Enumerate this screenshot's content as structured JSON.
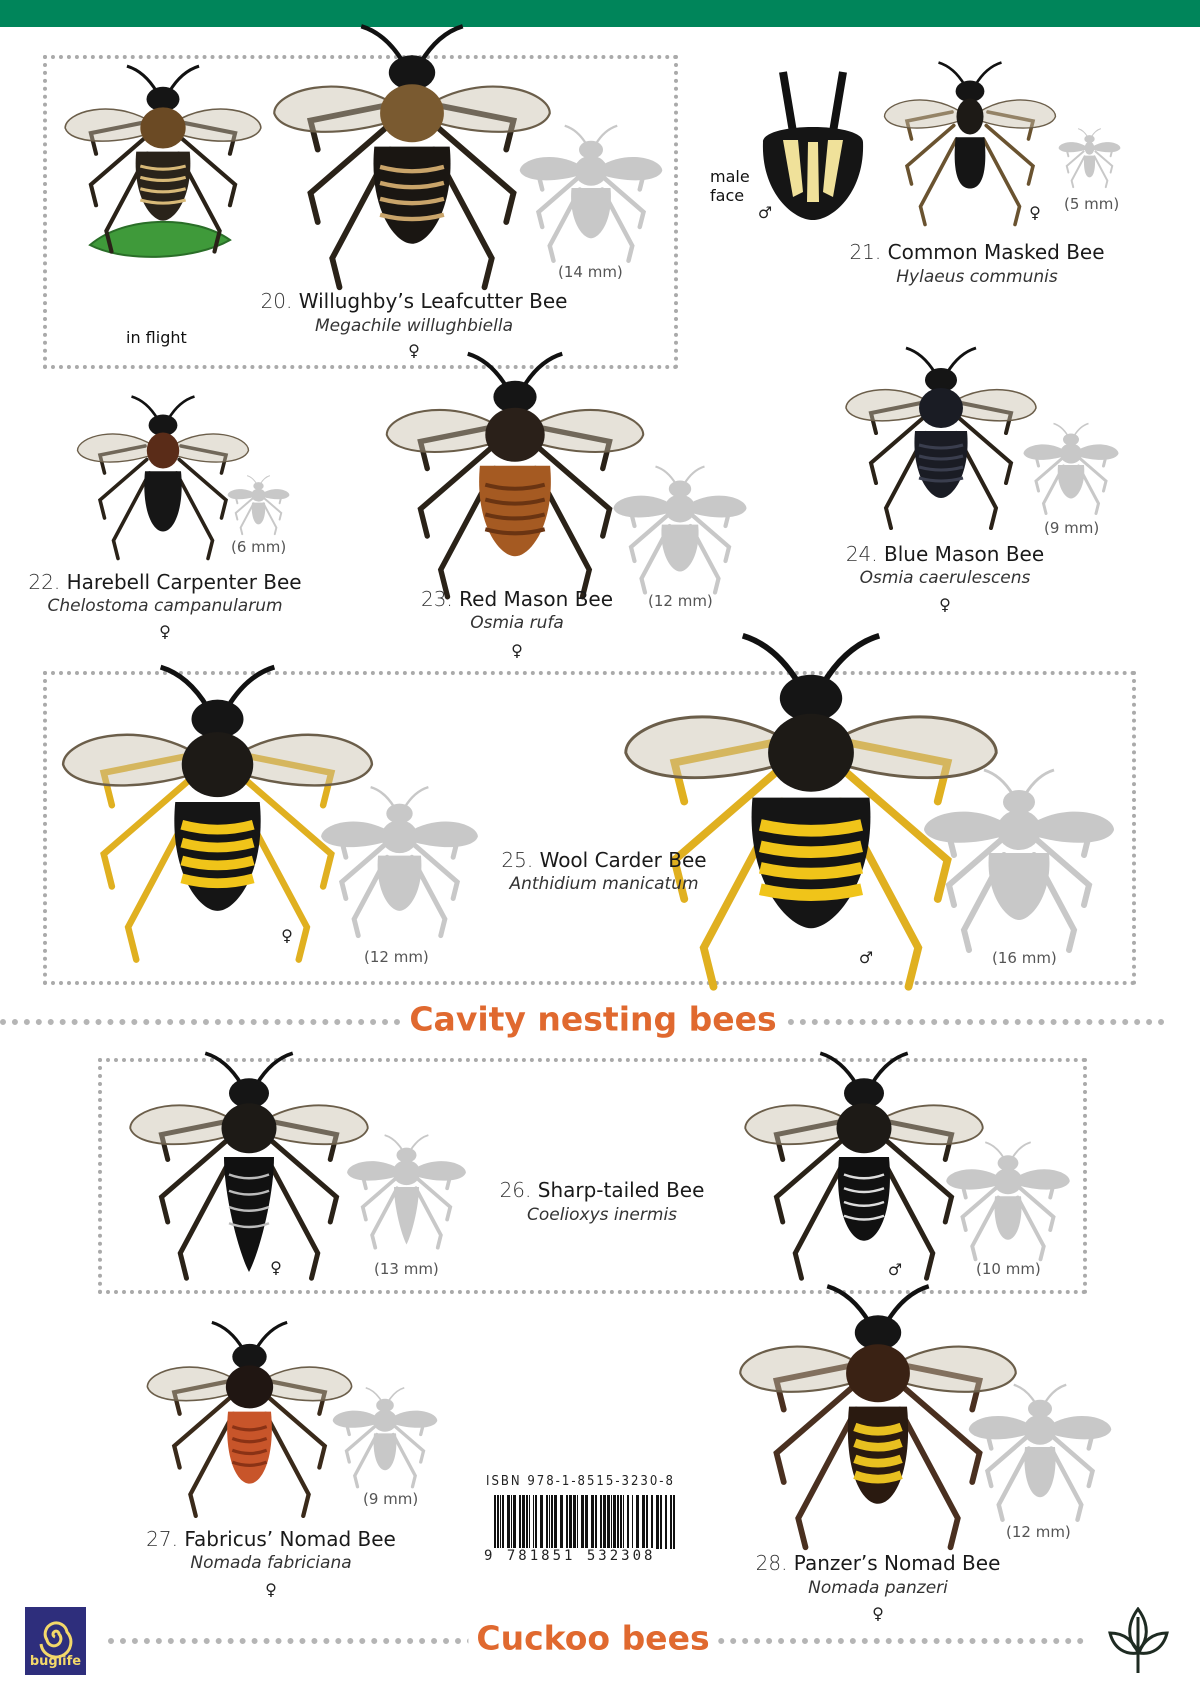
{
  "colors": {
    "top_bar": "#00855a",
    "heading": "#e0692f",
    "silhouette": "#c8c8c8",
    "logo_bg": "#2e2e7c",
    "logo_fg": "#f3d86a"
  },
  "species": [
    {
      "num": "20.",
      "name": "Willughby’s Leafcutter Bee",
      "sci": "Megachile willughbiella",
      "sex": "♀",
      "size": "(14 mm)",
      "note": "in flight"
    },
    {
      "num": "21.",
      "name": "Common Masked Bee",
      "sci": "Hylaeus communis",
      "sex_female": "♀",
      "sex_male": "♂",
      "size": "(5 mm)",
      "note": "male\nface"
    },
    {
      "num": "22.",
      "name": "Harebell Carpenter Bee",
      "sci": "Chelostoma campanularum",
      "sex": "♀",
      "size": "(6 mm)"
    },
    {
      "num": "23.",
      "name": "Red Mason Bee",
      "sci": "Osmia rufa",
      "sex": "♀",
      "size": "(12 mm)"
    },
    {
      "num": "24.",
      "name": "Blue Mason Bee",
      "sci": "Osmia caerulescens",
      "sex": "♀",
      "size": "(9 mm)"
    },
    {
      "num": "25.",
      "name": "Wool Carder Bee",
      "sci": "Anthidium manicatum",
      "sex_female": "♀",
      "size_female": "(12 mm)",
      "sex_male": "♂",
      "size_male": "(16 mm)"
    },
    {
      "num": "26.",
      "name": "Sharp-tailed Bee",
      "sci": "Coelioxys inermis",
      "sex_female": "♀",
      "size_female": "(13 mm)",
      "sex_male": "♂",
      "size_male": "(10 mm)"
    },
    {
      "num": "27.",
      "name": "Fabricus’ Nomad Bee",
      "sci": "Nomada fabriciana",
      "sex": "♀",
      "size": "(9 mm)"
    },
    {
      "num": "28.",
      "name": "Panzer’s Nomad Bee",
      "sci": "Nomada panzeri",
      "sex": "♀",
      "size": "(12 mm)"
    }
  ],
  "sections": {
    "cavity": "Cavity nesting bees",
    "cuckoo": "Cuckoo bees"
  },
  "isbn": {
    "label": "ISBN 978-1-8515-3230-8",
    "digits": "9 781851 532308"
  },
  "logo": {
    "text": "buglife",
    "icon": "spiral-icon"
  },
  "corner_icon": "leaf-icon"
}
